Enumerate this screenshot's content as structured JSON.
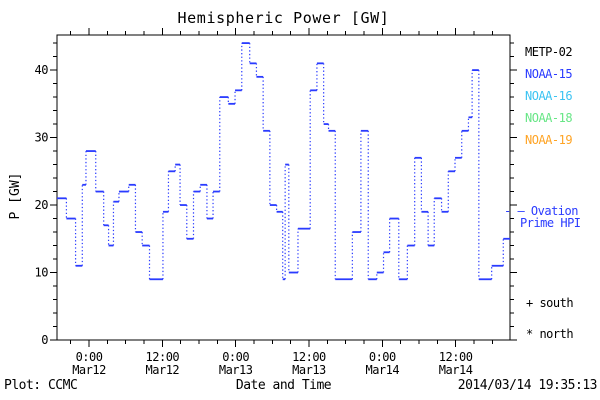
{
  "title": "Hemispheric Power [GW]",
  "colors": {
    "background": "#ffffff",
    "frame": "#000000",
    "text": "#000000",
    "hpi_line": "#2a3bff"
  },
  "legend": {
    "satellites": [
      {
        "label": "METP-02",
        "color": "#000000"
      },
      {
        "label": "NOAA-15",
        "color": "#2a3bff"
      },
      {
        "label": "NOAA-16",
        "color": "#3cc3f2"
      },
      {
        "label": "NOAA-18",
        "color": "#67e686"
      },
      {
        "label": "NOAA-19",
        "color": "#ffa425"
      }
    ],
    "line_label_line1": "- — Ovation",
    "line_label_line2": "Prime HPI",
    "south": "+ south",
    "north": "* north"
  },
  "footer": {
    "credit": "Plot: CCMC",
    "timestamp": "2014/03/14 19:35:13"
  },
  "chart_data": {
    "type": "line",
    "subtype": "step-post",
    "title": "Hemispheric Power [GW]",
    "xlabel": "Date and Time",
    "ylabel": "P [GW]",
    "ylim": [
      0,
      45.2
    ],
    "y_major_ticks": [
      0,
      10,
      20,
      30,
      40
    ],
    "y_minor_interval": 2,
    "xlim_hours": [
      -5.24,
      68.9
    ],
    "x_hours_origin": "2014-03-12 00:00",
    "x_minor_interval_hours": 3,
    "x_major_ticks": [
      {
        "hour": 0,
        "time": "0:00",
        "date": "Mar12"
      },
      {
        "hour": 12,
        "time": "12:00",
        "date": "Mar12"
      },
      {
        "hour": 24,
        "time": "0:00",
        "date": "Mar13"
      },
      {
        "hour": 36,
        "time": "12:00",
        "date": "Mar13"
      },
      {
        "hour": 48,
        "time": "0:00",
        "date": "Mar14"
      },
      {
        "hour": 60,
        "time": "12:00",
        "date": "Mar14"
      }
    ],
    "grid": false,
    "legend_position": "right",
    "series": [
      {
        "name": "Ovation Prime HPI",
        "color": "#2a3bff",
        "line_style": "solid horizontal steps with dotted vertical risers",
        "units": "GW",
        "points": [
          [
            -5.24,
            21
          ],
          [
            -3.7,
            18
          ],
          [
            -2.2,
            11
          ],
          [
            -1.1,
            23
          ],
          [
            -0.5,
            28
          ],
          [
            1.1,
            22
          ],
          [
            2.4,
            17
          ],
          [
            3.2,
            14
          ],
          [
            4.0,
            20.5
          ],
          [
            4.9,
            22
          ],
          [
            6.5,
            23
          ],
          [
            7.6,
            16
          ],
          [
            8.7,
            14
          ],
          [
            9.9,
            9
          ],
          [
            12.1,
            19
          ],
          [
            13.0,
            25
          ],
          [
            14.1,
            26
          ],
          [
            14.9,
            20
          ],
          [
            16.0,
            15
          ],
          [
            17.1,
            22
          ],
          [
            18.2,
            23
          ],
          [
            19.3,
            18
          ],
          [
            20.3,
            22
          ],
          [
            21.4,
            36
          ],
          [
            22.8,
            35
          ],
          [
            23.9,
            37
          ],
          [
            25.0,
            44
          ],
          [
            26.3,
            41
          ],
          [
            27.4,
            39
          ],
          [
            28.5,
            31
          ],
          [
            29.6,
            20
          ],
          [
            30.7,
            19
          ],
          [
            31.7,
            9
          ],
          [
            32.1,
            26
          ],
          [
            32.7,
            10
          ],
          [
            34.2,
            16.5
          ],
          [
            36.2,
            37
          ],
          [
            37.3,
            41
          ],
          [
            38.4,
            32
          ],
          [
            39.2,
            31
          ],
          [
            40.3,
            9
          ],
          [
            43.1,
            16
          ],
          [
            44.5,
            31
          ],
          [
            45.7,
            9
          ],
          [
            47.1,
            10
          ],
          [
            48.2,
            13
          ],
          [
            49.2,
            18
          ],
          [
            50.7,
            9
          ],
          [
            52.1,
            14
          ],
          [
            53.3,
            27
          ],
          [
            54.4,
            19
          ],
          [
            55.5,
            14
          ],
          [
            56.5,
            21
          ],
          [
            57.7,
            19
          ],
          [
            58.8,
            25
          ],
          [
            59.9,
            27
          ],
          [
            61.0,
            31
          ],
          [
            62.1,
            33
          ],
          [
            62.7,
            40
          ],
          [
            63.8,
            9
          ],
          [
            65.9,
            11
          ],
          [
            67.8,
            15
          ]
        ]
      }
    ]
  }
}
